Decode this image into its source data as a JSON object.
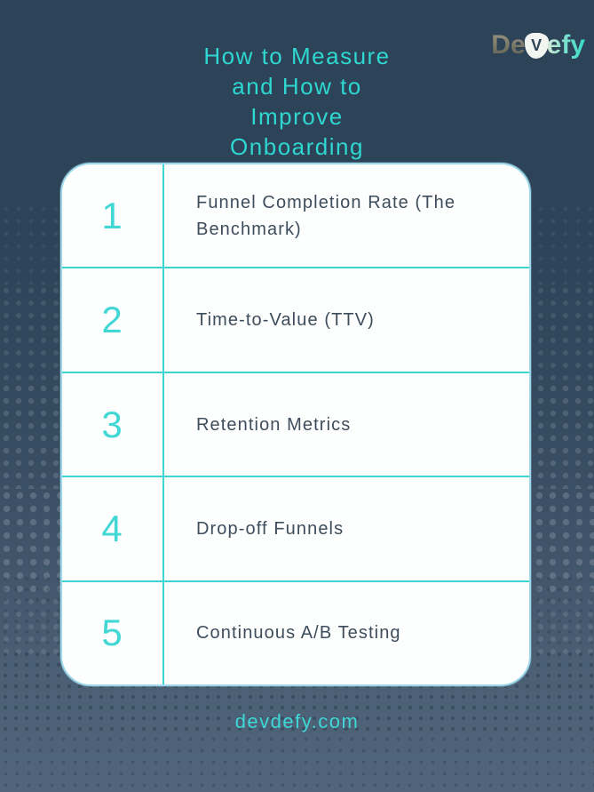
{
  "title": {
    "lines": [
      "How to Measure",
      "and How to",
      "Improve",
      "Onboarding"
    ]
  },
  "logo": {
    "part_de": "De",
    "part_v": "V",
    "part_efy": "efy"
  },
  "list": {
    "items": [
      {
        "number": "1",
        "label": "Funnel Completion Rate (The Benchmark)"
      },
      {
        "number": "2",
        "label": "Time-to-Value (TTV)"
      },
      {
        "number": "3",
        "label": "Retention Metrics"
      },
      {
        "number": "4",
        "label": "Drop-off Funnels"
      },
      {
        "number": "5",
        "label": "Continuous A/B Testing"
      }
    ]
  },
  "footer": {
    "url": "devdefy.com"
  },
  "colors": {
    "background_top": "#2d4358",
    "background_bottom": "#50657a",
    "accent_cyan": "#3cd5d1",
    "title_cyan": "#2ed7d0",
    "number_cyan": "#41d7d4",
    "card_background": "#fdfefe",
    "card_border_blue": "#9ad8ea",
    "label_dark": "#3e4d5c",
    "logo_olive": "#7a7869",
    "logo_teal": "#35dcc6"
  }
}
